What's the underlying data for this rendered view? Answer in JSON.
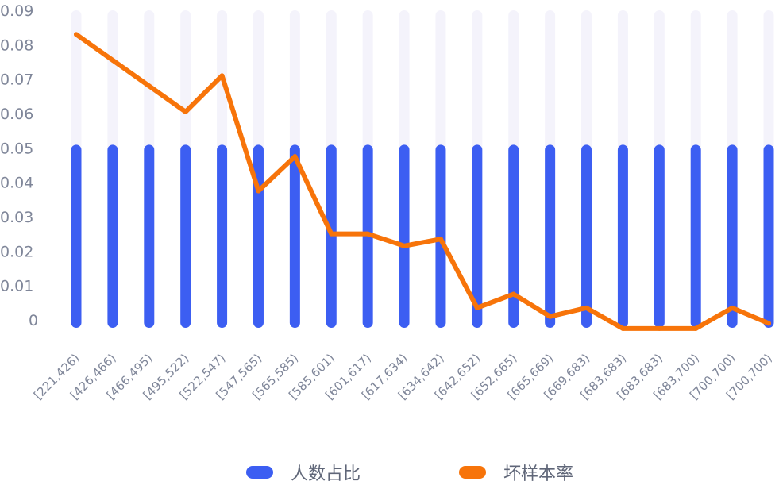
{
  "chart_data": {
    "type": "bar",
    "categories": [
      "[221,426)",
      "[426,466)",
      "[466,495)",
      "[495,522)",
      "[522,547)",
      "[547,565)",
      "[565,585)",
      "[585,601)",
      "[601,617)",
      "[617,634)",
      "[634,642)",
      "[642,652)",
      "[652,665)",
      "[665,669)",
      "[669,683)",
      "[683,683)",
      "[683,683)",
      "[683,700)",
      "[700,700)",
      "[700,700)"
    ],
    "y_ticks": [
      "0",
      "0.01",
      "0.02",
      "0.03",
      "0.04",
      "0.05",
      "0.06",
      "0.07",
      "0.08",
      "0.09"
    ],
    "ylim": [
      0,
      0.09
    ],
    "series": [
      {
        "name": "人数占比",
        "type": "bar",
        "color": "#3c5ef2",
        "values": [
          0.05,
          0.05,
          0.05,
          0.05,
          0.05,
          0.05,
          0.05,
          0.05,
          0.05,
          0.05,
          0.05,
          0.05,
          0.05,
          0.05,
          0.05,
          0.05,
          0.05,
          0.05,
          0.05,
          0.05
        ]
      },
      {
        "name": "坏样本率",
        "type": "line",
        "color": "#f7740a",
        "values": [
          0.083,
          0.0755,
          0.068,
          0.0605,
          0.071,
          0.0375,
          0.0475,
          0.025,
          0.025,
          0.0215,
          0.0235,
          0.0035,
          0.0075,
          0.001,
          0.0035,
          -0.0025,
          -0.0025,
          -0.0025,
          0.0035,
          -0.001
        ]
      }
    ],
    "background_bar_color": "#f4f3fb",
    "legend_position": "bottom-center"
  }
}
